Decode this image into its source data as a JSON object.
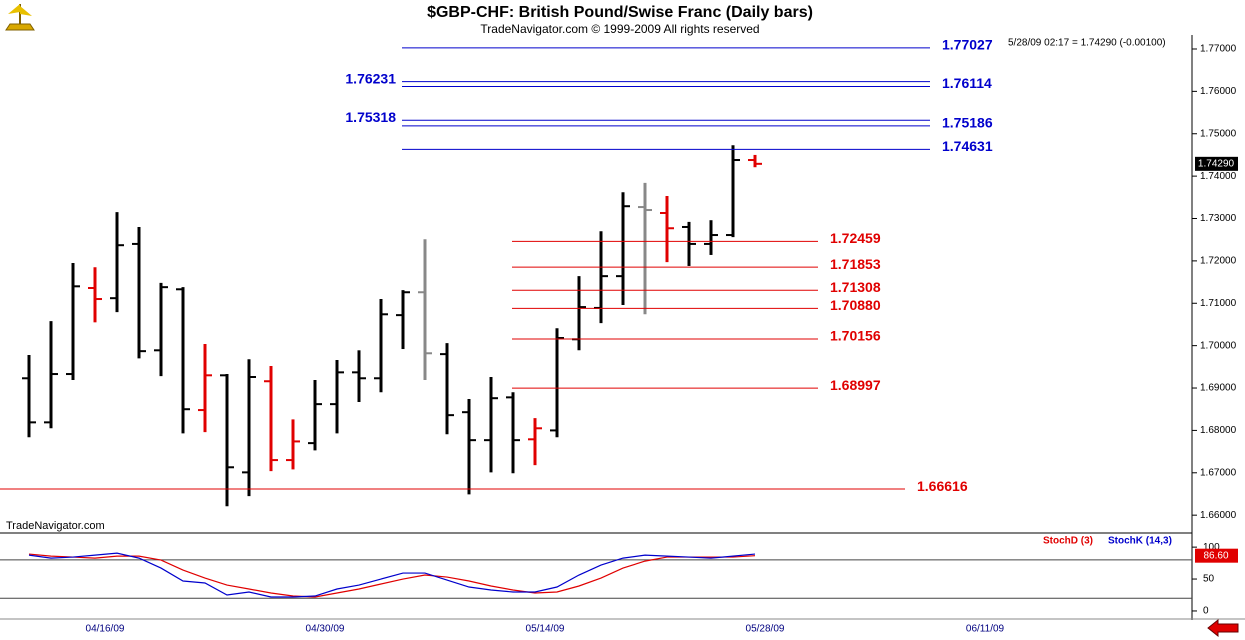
{
  "chart_data": [
    {
      "type": "ohlc",
      "title": "$GBP-CHF:  British Pound/Swise Franc  (Daily bars)",
      "subtitle": "TradeNavigator.com © 1999-2009 All rights reserved",
      "info": "5/28/09 02:17 = 1.74290 (-0.00100)",
      "watermark": "TradeNavigator.com",
      "categories": [
        null,
        null,
        null,
        "04/16/09",
        null,
        null,
        null,
        null,
        null,
        null,
        null,
        null,
        null,
        "04/30/09",
        null,
        null,
        null,
        null,
        null,
        null,
        null,
        null,
        null,
        "05/14/09",
        null,
        null,
        null,
        null,
        null,
        null,
        null,
        null,
        null,
        "05/28/09",
        null,
        null,
        null,
        null,
        null,
        null,
        null,
        null,
        null,
        "06/11/09"
      ],
      "series": [
        {
          "open": [
            1.6923,
            1.6819,
            1.6933,
            1.7136,
            1.7112,
            1.724,
            1.6989,
            1.7133,
            1.6848,
            1.693,
            1.6701,
            1.6916,
            1.673,
            1.677,
            1.6862,
            1.6937,
            1.6923,
            1.7072,
            1.7126,
            1.698,
            1.6843,
            1.6777,
            1.6878,
            1.6779,
            1.68,
            1.7015,
            1.7089,
            1.7164,
            1.7327,
            1.7313,
            1.728,
            1.724,
            1.7261,
            1.7438,
            null,
            null,
            null,
            null,
            null,
            null,
            null,
            null,
            null,
            null
          ],
          "high": [
            1.6978,
            1.7058,
            1.7195,
            1.7185,
            1.7315,
            1.728,
            1.7148,
            1.7138,
            1.7004,
            1.6933,
            1.6968,
            1.6952,
            1.6826,
            1.6919,
            1.6966,
            1.6989,
            1.711,
            1.7131,
            1.7251,
            1.7006,
            1.6874,
            1.6926,
            1.689,
            1.6829,
            1.7041,
            1.7164,
            1.727,
            1.7362,
            1.7384,
            1.7353,
            1.7292,
            1.7296,
            1.7473,
            1.745,
            null,
            null,
            null,
            null,
            null,
            null,
            null,
            null,
            null,
            null
          ],
          "low": [
            1.6784,
            1.6805,
            1.6919,
            1.7055,
            1.7079,
            1.697,
            1.6928,
            1.6793,
            1.6796,
            1.6621,
            1.6645,
            1.6704,
            1.6708,
            1.6753,
            1.6793,
            1.6867,
            1.689,
            1.6992,
            1.6919,
            1.6791,
            1.6649,
            1.6701,
            1.6699,
            1.6718,
            1.6784,
            1.6989,
            1.7053,
            1.7096,
            1.7074,
            1.7197,
            1.7188,
            1.7214,
            1.7256,
            1.7421,
            null,
            null,
            null,
            null,
            null,
            null,
            null,
            null,
            null,
            null
          ],
          "close": [
            1.6819,
            1.6933,
            1.714,
            1.711,
            1.7237,
            1.6987,
            1.7138,
            1.685,
            1.693,
            1.6713,
            1.6926,
            1.673,
            1.6774,
            1.6862,
            1.6937,
            1.6923,
            1.7074,
            1.7126,
            1.6982,
            1.6836,
            1.6777,
            1.6876,
            1.6777,
            1.6805,
            1.7018,
            1.7091,
            1.7164,
            1.7329,
            1.732,
            1.7277,
            1.724,
            1.7261,
            1.7438,
            1.7429,
            null,
            null,
            null,
            null,
            null,
            null,
            null,
            null,
            null,
            null
          ],
          "colors": [
            "#000000",
            "#000000",
            "#000000",
            "#e00000",
            "#000000",
            "#000000",
            "#000000",
            "#000000",
            "#e00000",
            "#000000",
            "#000000",
            "#e00000",
            "#e00000",
            "#000000",
            "#000000",
            "#000000",
            "#000000",
            "#000000",
            "#888888",
            "#000000",
            "#000000",
            "#000000",
            "#000000",
            "#e00000",
            "#000000",
            "#000000",
            "#000000",
            "#000000",
            "#888888",
            "#e00000",
            "#000000",
            "#000000",
            "#000000",
            "#e00000",
            null,
            null,
            null,
            null,
            null,
            null,
            null,
            null,
            null,
            null
          ]
        }
      ],
      "ylim": [
        1.6565,
        1.7733
      ],
      "yticks": [
        {
          "value": 1.66,
          "label": "1.66000"
        },
        {
          "value": 1.67,
          "label": "1.67000"
        },
        {
          "value": 1.68,
          "label": "1.68000"
        },
        {
          "value": 1.69,
          "label": "1.69000"
        },
        {
          "value": 1.7,
          "label": "1.70000"
        },
        {
          "value": 1.71,
          "label": "1.71000"
        },
        {
          "value": 1.72,
          "label": "1.72000"
        },
        {
          "value": 1.73,
          "label": "1.73000"
        },
        {
          "value": 1.74,
          "label": "1.74000"
        },
        {
          "value": 1.75,
          "label": "1.75000"
        },
        {
          "value": 1.76,
          "label": "1.76000"
        },
        {
          "value": 1.77,
          "label": "1.77000"
        }
      ],
      "last_price": {
        "value": 1.7429,
        "label": "1.74290"
      },
      "levels": [
        {
          "value": 1.77027,
          "color": "#0000cc",
          "label_side": "right",
          "extent": "partial"
        },
        {
          "value": 1.76231,
          "color": "#0000cc",
          "label_side": "left",
          "extent": "partial"
        },
        {
          "value": 1.76114,
          "color": "#0000cc",
          "label_side": "right",
          "extent": "partial"
        },
        {
          "value": 1.75318,
          "color": "#0000cc",
          "label_side": "left",
          "extent": "partial"
        },
        {
          "value": 1.75186,
          "color": "#0000cc",
          "label_side": "right",
          "extent": "partial"
        },
        {
          "value": 1.74631,
          "color": "#0000cc",
          "label_side": "right",
          "extent": "partial"
        },
        {
          "value": 1.72459,
          "color": "#e00000",
          "label_side": "right",
          "extent": "partial"
        },
        {
          "value": 1.71853,
          "color": "#e00000",
          "label_side": "right",
          "extent": "partial"
        },
        {
          "value": 1.71308,
          "color": "#e00000",
          "label_side": "right",
          "extent": "partial"
        },
        {
          "value": 1.7088,
          "label": "1.70880",
          "color": "#e00000",
          "label_side": "right",
          "extent": "partial"
        },
        {
          "value": 1.70156,
          "color": "#e00000",
          "label_side": "right",
          "extent": "partial"
        },
        {
          "value": 1.68997,
          "color": "#e00000",
          "label_side": "right",
          "extent": "partial"
        },
        {
          "value": 1.66616,
          "color": "#e00000",
          "label_side": "right",
          "extent": "full"
        }
      ]
    },
    {
      "type": "line",
      "series": [
        {
          "name": "StochD (3)",
          "color": "#e00000",
          "values": [
            89.1,
            85.9,
            84.4,
            82.8,
            85.9,
            85.9,
            79.7,
            64.1,
            51.6,
            40.6,
            34.4,
            28.1,
            23.4,
            21.9,
            28.1,
            34.4,
            42.2,
            50,
            56.3,
            53.1,
            46.9,
            39.1,
            32.8,
            28.1,
            29.7,
            39.1,
            51.6,
            67.2,
            78.1,
            84.4,
            84.4,
            84.4,
            84.4,
            86.6,
            null,
            null,
            null,
            null,
            null,
            null,
            null,
            null,
            null,
            null
          ]
        },
        {
          "name": "StochK (14,3)",
          "color": "#0000cc",
          "values": [
            87.5,
            82.8,
            84.4,
            87.5,
            90.6,
            82.8,
            67.2,
            46.9,
            43.8,
            25,
            29.7,
            21.9,
            21.9,
            23.4,
            34.4,
            40.6,
            50,
            59.4,
            59.4,
            48.4,
            37.5,
            32.8,
            29.7,
            29.7,
            37.5,
            56.3,
            71.9,
            82.8,
            87.5,
            85.9,
            84.4,
            82.8,
            85.9,
            89.1,
            null,
            null,
            null,
            null,
            null,
            null,
            null,
            null,
            null,
            null
          ]
        }
      ],
      "ylim": [
        -22,
        119
      ],
      "yticks": [
        0,
        50,
        100
      ],
      "reference_lines": [
        20,
        80
      ],
      "last_value": {
        "value": 86.6,
        "label": "86.60"
      }
    }
  ]
}
